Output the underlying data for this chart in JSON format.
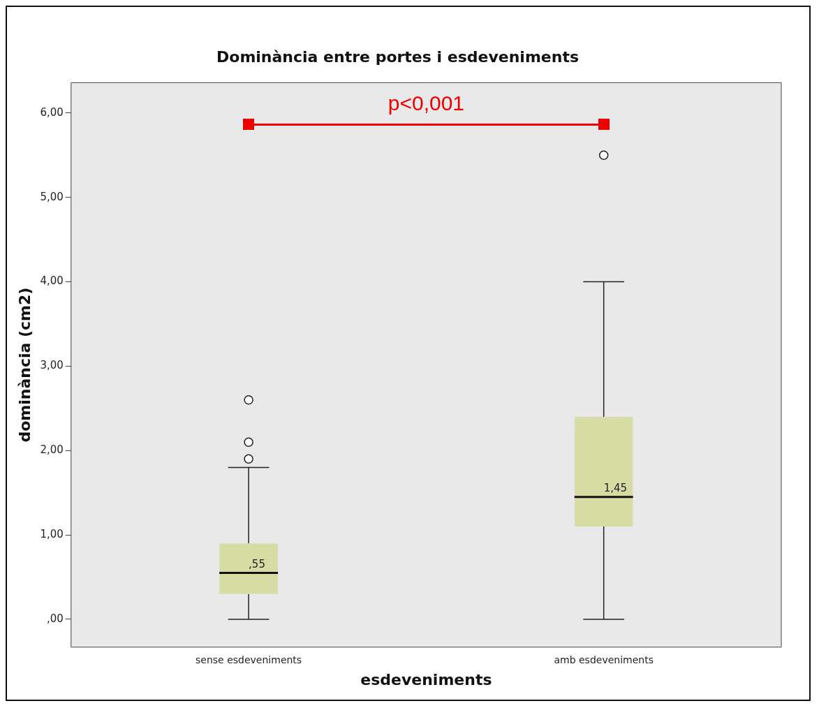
{
  "chart_data": {
    "type": "box",
    "title": "Dominància entre portes i esdeveniments",
    "xlabel": "esdeveniments",
    "ylabel": "dominància (cm2)",
    "categories": [
      "sense esdeveniments",
      "amb esdeveniments"
    ],
    "color": "#d6dca4",
    "boxes": [
      {
        "low": 0,
        "q1": 0.3,
        "median": 0.55,
        "q3": 0.9,
        "high": 1.8,
        "outliers": [
          1.9,
          2.1,
          2.6
        ]
      },
      {
        "low": 0,
        "q1": 1.1,
        "median": 1.45,
        "q3": 2.4,
        "high": 4.0,
        "outliers": [
          5.5
        ]
      }
    ],
    "ylim": [
      -0.33,
      6.36
    ],
    "yticks": [
      {
        "value": 0,
        "label": ",00"
      },
      {
        "value": 1,
        "label": "1,00"
      },
      {
        "value": 2,
        "label": "2,00"
      },
      {
        "value": 3,
        "label": "3,00"
      },
      {
        "value": 4,
        "label": "4,00"
      },
      {
        "value": 5,
        "label": "5,00"
      },
      {
        "value": 6,
        "label": "6,00"
      }
    ],
    "grid": false,
    "legend": false,
    "marker": "circle",
    "annotations": [
      {
        "text": ",55",
        "x": "sense esdeveniments",
        "y": 0.55
      },
      {
        "text": "1,45",
        "x": "amb esdeveniments",
        "y": 1.45
      },
      "p<0,001"
    ]
  }
}
